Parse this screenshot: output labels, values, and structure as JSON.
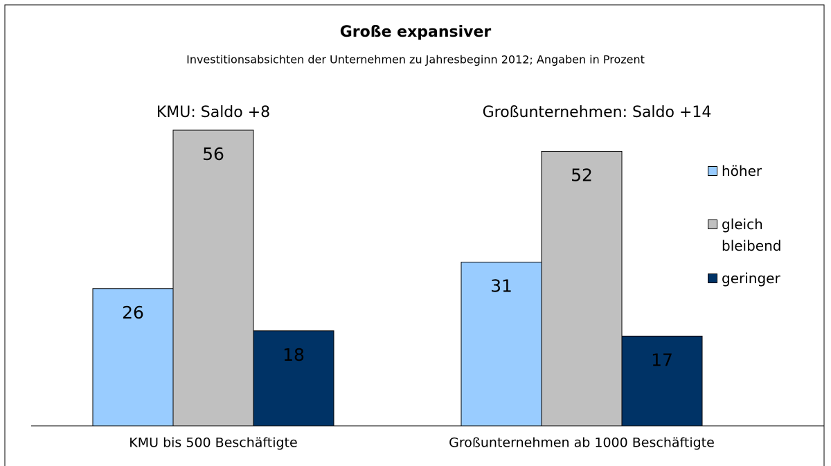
{
  "chart_data": {
    "type": "bar",
    "title": "Große expansiver",
    "subtitle": "Investitionsabsichten der Unternehmen zu Jahresbeginn 2012; Angaben in Prozent",
    "annotations": [
      "KMU: Saldo +8",
      "Großunternehmen: Saldo +14"
    ],
    "categories": [
      "KMU bis 500 Beschäftigte",
      "Großunternehmen ab 1000 Beschäftigte"
    ],
    "series": [
      {
        "name": "höher",
        "color": "#99ccff",
        "values": [
          26,
          31
        ]
      },
      {
        "name": "gleich bleibend",
        "color": "#c0c0c0",
        "values": [
          56,
          52
        ]
      },
      {
        "name": "geringer",
        "color": "#003366",
        "values": [
          18,
          17
        ]
      }
    ],
    "ylim": [
      0,
      60
    ],
    "legend": "right"
  }
}
